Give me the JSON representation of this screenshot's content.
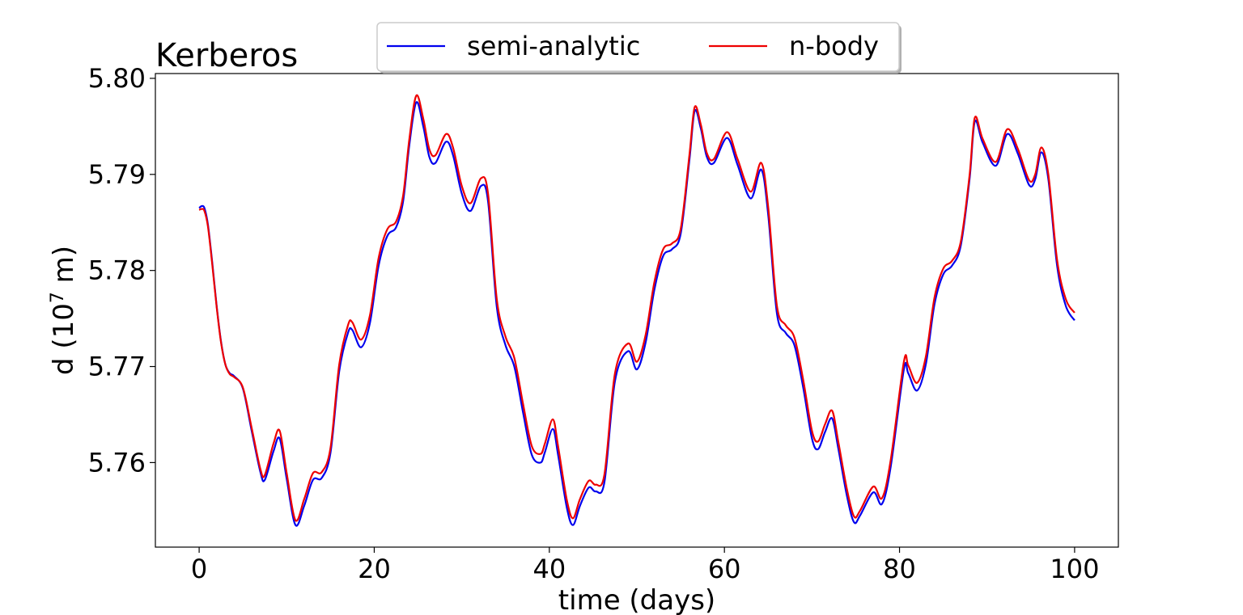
{
  "chart_data": {
    "type": "line",
    "title": "Kerberos",
    "xlabel": "time (days)",
    "ylabel_base": "d (10",
    "ylabel_exp": "7",
    "ylabel_unit": " m)",
    "xlim": [
      -5,
      105
    ],
    "ylim": [
      5.7512,
      5.8005
    ],
    "xticks": [
      0,
      20,
      40,
      60,
      80,
      100
    ],
    "xtick_labels": [
      "0",
      "20",
      "40",
      "60",
      "80",
      "100"
    ],
    "yticks": [
      5.76,
      5.77,
      5.78,
      5.79,
      5.8
    ],
    "ytick_labels": [
      "5.76",
      "5.77",
      "5.78",
      "5.79",
      "5.80"
    ],
    "grid": false,
    "legend": {
      "placement": "top-center",
      "columns": 2
    },
    "series": [
      {
        "name": "semi-analytic",
        "color": "#0000ee",
        "x": [
          0,
          0.3,
          0.6,
          1,
          1.5,
          2,
          2.5,
          3,
          3.5,
          4,
          5,
          6,
          7,
          7.5,
          8.5,
          9.2,
          10,
          11,
          12,
          13,
          14,
          15,
          16,
          17,
          17.5,
          18.5,
          19.5,
          20.5,
          21.5,
          22.5,
          23.3,
          24,
          24.8,
          25.6,
          26.3,
          27,
          28.2,
          29,
          30,
          31,
          32.2,
          33,
          34,
          35,
          36,
          37,
          38,
          39,
          39.5,
          40.4,
          41,
          42,
          42.7,
          43.5,
          44.5,
          45.3,
          46.3,
          47.5,
          49,
          50,
          51,
          52,
          53,
          54,
          55,
          56,
          56.6,
          57.3,
          58,
          58.8,
          60.3,
          61.5,
          63,
          64.2,
          65,
          66,
          67,
          68,
          69,
          70,
          70.7,
          71.5,
          72.3,
          73,
          74,
          74.8,
          75.5,
          77,
          78,
          79,
          80.5,
          81,
          82,
          83,
          84,
          85,
          86,
          87,
          88,
          88.6,
          89.5,
          91,
          92.3,
          93.5,
          94.8,
          95.5,
          96.2,
          97,
          98,
          99,
          100
        ],
        "y": [
          5.7865,
          5.7867,
          5.7865,
          5.7848,
          5.7808,
          5.7763,
          5.7726,
          5.7702,
          5.7693,
          5.769,
          5.7677,
          5.7633,
          5.759,
          5.7582,
          5.7612,
          5.7625,
          5.7583,
          5.7535,
          5.7555,
          5.7582,
          5.7584,
          5.761,
          5.7695,
          5.7735,
          5.7738,
          5.772,
          5.7745,
          5.7805,
          5.7836,
          5.7845,
          5.7872,
          5.793,
          5.7975,
          5.795,
          5.7918,
          5.7912,
          5.7934,
          5.792,
          5.788,
          5.7862,
          5.7888,
          5.7872,
          5.7762,
          5.7722,
          5.77,
          5.7652,
          5.7608,
          5.76,
          5.7611,
          5.7635,
          5.7608,
          5.7553,
          5.7535,
          5.7555,
          5.7574,
          5.757,
          5.758,
          5.7685,
          5.7716,
          5.7697,
          5.7725,
          5.778,
          5.7815,
          5.7822,
          5.7838,
          5.7915,
          5.7966,
          5.7948,
          5.7918,
          5.7912,
          5.7938,
          5.791,
          5.7875,
          5.7905,
          5.7858,
          5.7755,
          5.7735,
          5.7722,
          5.7678,
          5.7625,
          5.7614,
          5.7632,
          5.7646,
          5.7615,
          5.7565,
          5.7538,
          5.7545,
          5.7569,
          5.7557,
          5.7596,
          5.7697,
          5.7693,
          5.7675,
          5.7702,
          5.7765,
          5.7796,
          5.7805,
          5.7826,
          5.7895,
          5.7955,
          5.7933,
          5.7909,
          5.7942,
          5.7922,
          5.7889,
          5.7895,
          5.7923,
          5.7895,
          5.7805,
          5.7763,
          5.7748
        ]
      },
      {
        "name": "n-body",
        "color": "#ee0000",
        "x": [
          0,
          0.3,
          0.6,
          1,
          1.5,
          2,
          2.5,
          3,
          3.5,
          4,
          5,
          6,
          7,
          7.5,
          8.5,
          9.2,
          10,
          11,
          12,
          13,
          14,
          15,
          16,
          17,
          17.5,
          18.5,
          19.5,
          20.5,
          21.5,
          22.5,
          23.3,
          24,
          24.8,
          25.6,
          26.3,
          27,
          28.2,
          29,
          30,
          31,
          32.2,
          33,
          34,
          35,
          36,
          37,
          38,
          39,
          39.5,
          40.4,
          41,
          42,
          42.7,
          43.5,
          44.5,
          45.3,
          46.3,
          47.5,
          49,
          50,
          51,
          52,
          53,
          54,
          55,
          56,
          56.6,
          57.3,
          58,
          58.8,
          60.3,
          61.5,
          63,
          64.2,
          65,
          66,
          67,
          68,
          69,
          70,
          70.7,
          71.5,
          72.3,
          73,
          74,
          74.8,
          75.5,
          77,
          78,
          79,
          80.5,
          81,
          82,
          83,
          84,
          85,
          86,
          87,
          88,
          88.6,
          89.5,
          91,
          92.3,
          93.5,
          94.8,
          95.5,
          96.2,
          97,
          98,
          99,
          100
        ],
        "y": [
          5.7863,
          5.7864,
          5.7862,
          5.7846,
          5.7806,
          5.7762,
          5.7725,
          5.7702,
          5.7692,
          5.7689,
          5.7678,
          5.7636,
          5.7593,
          5.7587,
          5.762,
          5.7633,
          5.7589,
          5.754,
          5.7562,
          5.7589,
          5.759,
          5.7615,
          5.7702,
          5.7743,
          5.7746,
          5.7728,
          5.7753,
          5.7813,
          5.7843,
          5.7851,
          5.7878,
          5.7936,
          5.7982,
          5.7958,
          5.7926,
          5.792,
          5.7942,
          5.7928,
          5.7888,
          5.787,
          5.7896,
          5.788,
          5.777,
          5.7731,
          5.7709,
          5.7661,
          5.7617,
          5.7609,
          5.762,
          5.7645,
          5.7617,
          5.7561,
          5.7542,
          5.7562,
          5.7581,
          5.7577,
          5.7588,
          5.7693,
          5.7724,
          5.7705,
          5.7733,
          5.7788,
          5.7822,
          5.7828,
          5.7843,
          5.792,
          5.797,
          5.7952,
          5.7922,
          5.7916,
          5.7944,
          5.7916,
          5.7882,
          5.7912,
          5.7866,
          5.7763,
          5.7743,
          5.773,
          5.7686,
          5.7633,
          5.7622,
          5.764,
          5.7654,
          5.7622,
          5.7572,
          5.7544,
          5.755,
          5.7575,
          5.7563,
          5.7603,
          5.7705,
          5.7701,
          5.7683,
          5.771,
          5.7772,
          5.7802,
          5.781,
          5.783,
          5.7899,
          5.7959,
          5.7937,
          5.7913,
          5.7947,
          5.7927,
          5.7894,
          5.79,
          5.7928,
          5.79,
          5.7811,
          5.777,
          5.7756
        ]
      }
    ]
  }
}
